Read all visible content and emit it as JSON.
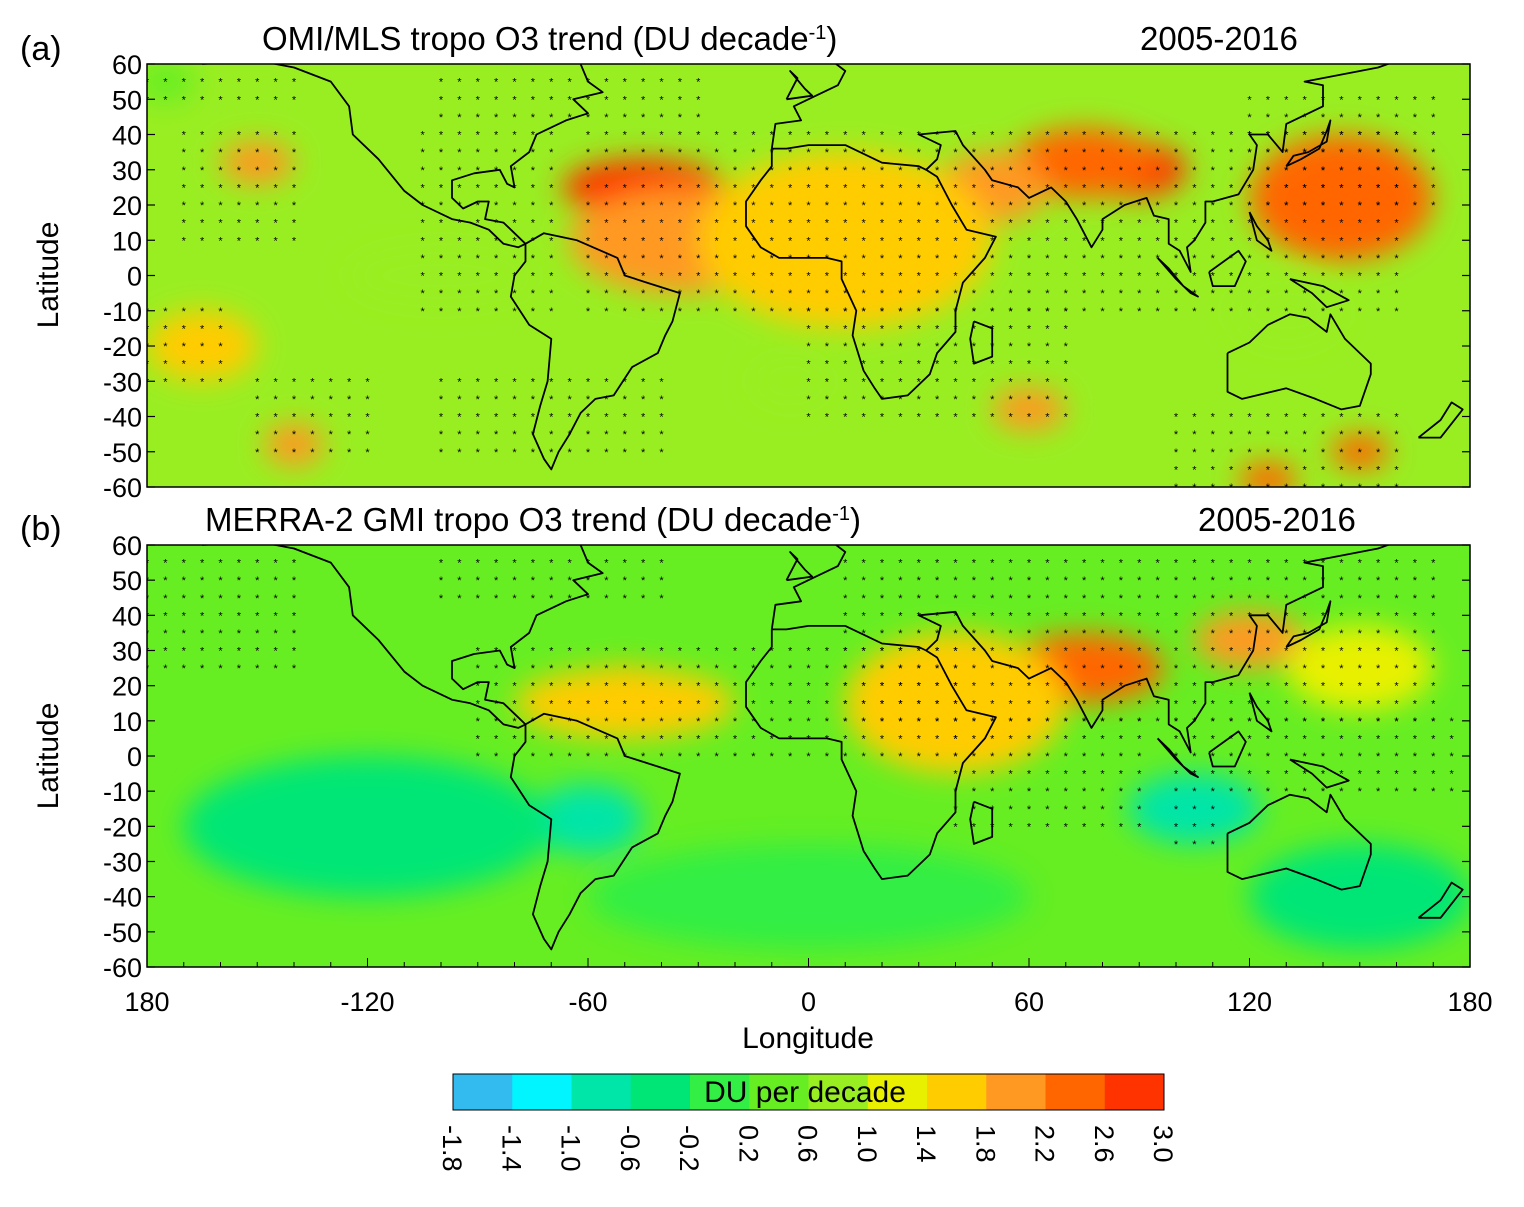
{
  "chart_data": [
    {
      "type": "heatmap",
      "panel_label": "(a)",
      "title": "OMI/MLS  tropo O3  trend (DU decade",
      "title_superscript": "-1",
      "title_suffix": ")",
      "period": "2005-2016",
      "ylabel": "Latitude",
      "xlim": [
        -180,
        180
      ],
      "ylim": [
        -60,
        60
      ],
      "yticks": [
        "60",
        "50",
        "40",
        "30",
        "20",
        "10",
        "0",
        "-10",
        "-20",
        "-30",
        "-40",
        "-50",
        "-60"
      ],
      "hotspots": [
        {
          "lon": -45,
          "lat": 25,
          "value": 2.8,
          "rx": 22,
          "ry": 8
        },
        {
          "lon": 88,
          "lat": 30,
          "value": 2.8,
          "rx": 15,
          "ry": 8
        },
        {
          "lon": 75,
          "lat": 32,
          "value": 2.4,
          "rx": 20,
          "ry": 10
        },
        {
          "lon": 145,
          "lat": 22,
          "value": 2.4,
          "rx": 25,
          "ry": 18
        },
        {
          "lon": 50,
          "lat": 25,
          "value": 2.0,
          "rx": 15,
          "ry": 10
        },
        {
          "lon": -150,
          "lat": 32,
          "value": 2.0,
          "rx": 10,
          "ry": 6
        },
        {
          "lon": 30,
          "lat": 0,
          "value": 2.2,
          "rx": 12,
          "ry": 8
        },
        {
          "lon": -35,
          "lat": 10,
          "value": 1.8,
          "rx": 30,
          "ry": 15
        },
        {
          "lon": 10,
          "lat": 10,
          "value": 1.5,
          "rx": 40,
          "ry": 25
        },
        {
          "lon": -140,
          "lat": -48,
          "value": 1.8,
          "rx": 8,
          "ry": 6
        },
        {
          "lon": 60,
          "lat": -38,
          "value": 2.0,
          "rx": 10,
          "ry": 6
        },
        {
          "lon": 150,
          "lat": -50,
          "value": 2.2,
          "rx": 8,
          "ry": 5
        },
        {
          "lon": 125,
          "lat": -58,
          "value": 2.2,
          "rx": 8,
          "ry": 5
        },
        {
          "lon": -165,
          "lat": -20,
          "value": 1.6,
          "rx": 15,
          "ry": 10
        },
        {
          "lon": -100,
          "lat": 0,
          "value": 0.6,
          "rx": 25,
          "ry": 8
        },
        {
          "lon": 130,
          "lat": -10,
          "value": 0.6,
          "rx": 15,
          "ry": 10
        },
        {
          "lon": -5,
          "lat": -30,
          "value": 0.6,
          "rx": 10,
          "ry": 6
        },
        {
          "lon": -175,
          "lat": 55,
          "value": 0.4,
          "rx": 8,
          "ry": 6
        }
      ],
      "stipple": [
        [
          -180,
          -140,
          50,
          60
        ],
        [
          -100,
          -30,
          45,
          60
        ],
        [
          -170,
          -140,
          10,
          40
        ],
        [
          -105,
          -70,
          -10,
          40
        ],
        [
          -60,
          160,
          -10,
          40
        ],
        [
          0,
          70,
          -40,
          -10
        ],
        [
          -150,
          -120,
          -50,
          -30
        ],
        [
          -100,
          -40,
          -50,
          -30
        ],
        [
          120,
          170,
          20,
          50
        ],
        [
          100,
          160,
          -60,
          -40
        ],
        [
          -180,
          -160,
          -30,
          -10
        ]
      ]
    },
    {
      "type": "heatmap",
      "panel_label": "(b)",
      "title": "MERRA-2  GMI  tropo O3  trend (DU decade",
      "title_superscript": "-1",
      "title_suffix": ")",
      "period": "2005-2016",
      "ylabel": "Latitude",
      "xlabel": "Longitude",
      "xlim": [
        -180,
        180
      ],
      "ylim": [
        -60,
        60
      ],
      "yticks": [
        "60",
        "50",
        "40",
        "30",
        "20",
        "10",
        "0",
        "-10",
        "-20",
        "-30",
        "-40",
        "-50",
        "-60"
      ],
      "xticks": [
        "180",
        "-120",
        "-60",
        "0",
        "60",
        "120",
        "180"
      ],
      "hotspots": [
        {
          "lon": 80,
          "lat": 25,
          "value": 2.6,
          "rx": 12,
          "ry": 6
        },
        {
          "lon": 75,
          "lat": 25,
          "value": 2.2,
          "rx": 22,
          "ry": 10
        },
        {
          "lon": 45,
          "lat": 25,
          "value": 2.2,
          "rx": 12,
          "ry": 10
        },
        {
          "lon": 120,
          "lat": 33,
          "value": 2.0,
          "rx": 15,
          "ry": 8
        },
        {
          "lon": -50,
          "lat": 20,
          "value": 2.0,
          "rx": 8,
          "ry": 6
        },
        {
          "lon": 40,
          "lat": 15,
          "value": 1.6,
          "rx": 30,
          "ry": 20
        },
        {
          "lon": -50,
          "lat": 15,
          "value": 1.4,
          "rx": 30,
          "ry": 10
        },
        {
          "lon": 150,
          "lat": 25,
          "value": 1.3,
          "rx": 20,
          "ry": 12
        },
        {
          "lon": 105,
          "lat": -15,
          "value": -1.6,
          "rx": 6,
          "ry": 4
        },
        {
          "lon": 105,
          "lat": -15,
          "value": -1.0,
          "rx": 18,
          "ry": 10
        },
        {
          "lon": -60,
          "lat": -18,
          "value": -0.8,
          "rx": 15,
          "ry": 10
        },
        {
          "lon": -120,
          "lat": -20,
          "value": -0.3,
          "rx": 50,
          "ry": 20
        },
        {
          "lon": 0,
          "lat": -40,
          "value": -0.2,
          "rx": 60,
          "ry": 15
        },
        {
          "lon": 150,
          "lat": -40,
          "value": -0.3,
          "rx": 30,
          "ry": 15
        }
      ],
      "stipple": [
        [
          -180,
          -140,
          25,
          60
        ],
        [
          -100,
          -40,
          45,
          60
        ],
        [
          -90,
          40,
          0,
          30
        ],
        [
          10,
          170,
          10,
          60
        ],
        [
          40,
          90,
          -20,
          10
        ],
        [
          100,
          175,
          -10,
          10
        ],
        [
          100,
          110,
          -25,
          -15
        ]
      ]
    }
  ],
  "colorbar": {
    "title": "DU per  decade",
    "ticks": [
      "-1.8",
      "-1.4",
      "-1.0",
      "-0.6",
      "-0.2",
      "0.2",
      "0.6",
      "1.0",
      "1.4",
      "1.8",
      "2.2",
      "2.6",
      "3.0"
    ],
    "levels": [
      -1.8,
      -1.4,
      -1.0,
      -0.6,
      -0.2,
      0.2,
      0.6,
      1.0,
      1.4,
      1.8,
      2.2,
      2.6,
      3.0
    ],
    "colors": [
      "#33bbf0",
      "#00f5ff",
      "#00e5a8",
      "#00e676",
      "#33ee44",
      "#66ee22",
      "#99ee22",
      "#e8f000",
      "#ffcc00",
      "#ff9922",
      "#ff6600",
      "#ff3300"
    ]
  }
}
